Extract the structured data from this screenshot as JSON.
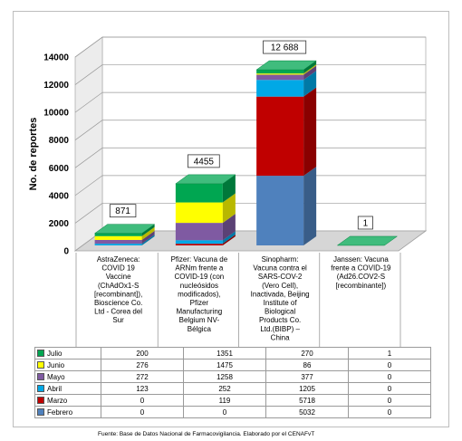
{
  "chart_data": {
    "type": "bar",
    "stacked": true,
    "three_d": true,
    "ylabel": "No. de reportes",
    "ylim": [
      0,
      14000
    ],
    "ytick_step": 2000,
    "yticks": [
      "0",
      "2000",
      "4000",
      "6000",
      "8000",
      "10000",
      "12000",
      "14000"
    ],
    "grid": true,
    "categories": [
      "AstraZeneca: COVID 19 Vaccine (ChAdOx1-S [recombinant]), Bioscience Co. Ltd - Corea del Sur",
      "Pfizer: Vacuna de ARNm frente a COVID-19 (con nucleósidos modificados), Pfizer Manufacturing Belgium NV- Bélgica",
      "Sinopharm: Vacuna contra el SARS-COV-2 (Vero Cell), Inactivada, Beijing Institute of Biological Products Co. Ltd.(BIBP) – China",
      "Janssen: Vacuna frente a COVID-19 (Ad26.COV2-S [recombinante])"
    ],
    "category_lines": [
      [
        "AstraZeneca:",
        "COVID 19",
        "Vaccine",
        "(ChAdOx1-S",
        "[recombinant]),",
        "Bioscience Co.",
        "Ltd - Corea del",
        "Sur"
      ],
      [
        "Pfizer: Vacuna de",
        "ARNm frente a",
        "COVID-19 (con",
        "nucleósidos",
        "modificados),",
        "Pfizer",
        "Manufacturing",
        "Belgium NV-",
        "Bélgica"
      ],
      [
        "Sinopharm:",
        "Vacuna contra el",
        "SARS-COV-2",
        "(Vero Cell),",
        "Inactivada, Beijing",
        "Institute of",
        "Biological",
        "Products Co.",
        "Ltd.(BIBP) –",
        "China"
      ],
      [
        "Janssen: Vacuna",
        "frente a COVID-19",
        "(Ad26.COV2-S",
        "[recombinante])"
      ]
    ],
    "totals": [
      "871",
      "4455",
      "12 688",
      "1"
    ],
    "series": [
      {
        "name": "Febrero",
        "color": "#4f81bd",
        "values": [
          0,
          0,
          5032,
          0
        ]
      },
      {
        "name": "Marzo",
        "color": "#c00000",
        "values": [
          0,
          119,
          5718,
          0
        ]
      },
      {
        "name": "Abril",
        "color": "#00a8e6",
        "values": [
          123,
          252,
          1205,
          0
        ]
      },
      {
        "name": "Mayo",
        "color": "#7f5aa2",
        "values": [
          272,
          1258,
          377,
          0
        ]
      },
      {
        "name": "Junio",
        "color": "#ffff00",
        "values": [
          276,
          1475,
          86,
          0
        ]
      },
      {
        "name": "Julio",
        "color": "#00a651",
        "values": [
          200,
          1351,
          270,
          1
        ]
      }
    ],
    "table_order": [
      "Julio",
      "Junio",
      "Mayo",
      "Abril",
      "Marzo",
      "Febrero"
    ]
  },
  "footnote": "Fuente: Base de Datos Nacional de Farmacovigilancia. Elaborado por el CENAFvT"
}
